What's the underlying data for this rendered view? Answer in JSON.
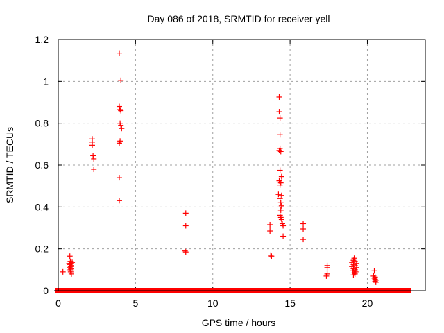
{
  "chart_data": {
    "type": "scatter",
    "title": "Day 086 of 2018, SRMTID for receiver yell",
    "xlabel": "GPS time / hours",
    "ylabel": "SRMTID / TECUs",
    "xlim": [
      0,
      23.75
    ],
    "ylim": [
      0,
      1.2
    ],
    "xticks": [
      0,
      5,
      10,
      15,
      20
    ],
    "xtick_labels": [
      "0",
      "5",
      "10",
      "15",
      "20"
    ],
    "yticks": [
      0,
      0.2,
      0.4,
      0.6,
      0.8,
      1.0,
      1.2
    ],
    "ytick_labels": [
      "0",
      "0.2",
      "0.4",
      "0.6",
      "0.8",
      "1",
      "1.2"
    ],
    "grid": true,
    "legend": "none",
    "marker": "plus",
    "marker_color": "#ff0000",
    "series": [
      {
        "name": "SRMTID",
        "points": [
          [
            0.3,
            0.09
          ],
          [
            0.75,
            0.165
          ],
          [
            0.78,
            0.14
          ],
          [
            0.8,
            0.13
          ],
          [
            0.72,
            0.125
          ],
          [
            0.85,
            0.12
          ],
          [
            0.8,
            0.115
          ],
          [
            0.75,
            0.11
          ],
          [
            0.82,
            0.105
          ],
          [
            0.78,
            0.1
          ],
          [
            0.8,
            0.09
          ],
          [
            0.85,
            0.08
          ],
          [
            0.9,
            0.135
          ],
          [
            0.7,
            0.13
          ],
          [
            2.2,
            0.725
          ],
          [
            2.2,
            0.71
          ],
          [
            2.2,
            0.695
          ],
          [
            2.25,
            0.645
          ],
          [
            2.3,
            0.63
          ],
          [
            2.3,
            0.58
          ],
          [
            3.95,
            1.135
          ],
          [
            4.05,
            1.005
          ],
          [
            3.95,
            0.88
          ],
          [
            4.0,
            0.865
          ],
          [
            4.05,
            0.86
          ],
          [
            4.0,
            0.8
          ],
          [
            4.05,
            0.79
          ],
          [
            4.1,
            0.775
          ],
          [
            4.0,
            0.715
          ],
          [
            3.95,
            0.705
          ],
          [
            3.95,
            0.54
          ],
          [
            3.95,
            0.43
          ],
          [
            8.25,
            0.37
          ],
          [
            8.25,
            0.31
          ],
          [
            8.2,
            0.19
          ],
          [
            8.25,
            0.185
          ],
          [
            13.7,
            0.315
          ],
          [
            13.7,
            0.285
          ],
          [
            13.75,
            0.17
          ],
          [
            13.8,
            0.165
          ],
          [
            14.3,
            0.925
          ],
          [
            14.3,
            0.855
          ],
          [
            14.35,
            0.825
          ],
          [
            14.35,
            0.745
          ],
          [
            14.35,
            0.68
          ],
          [
            14.3,
            0.67
          ],
          [
            14.4,
            0.665
          ],
          [
            14.35,
            0.575
          ],
          [
            14.45,
            0.545
          ],
          [
            14.3,
            0.525
          ],
          [
            14.4,
            0.515
          ],
          [
            14.35,
            0.505
          ],
          [
            14.25,
            0.46
          ],
          [
            14.45,
            0.455
          ],
          [
            14.35,
            0.44
          ],
          [
            14.4,
            0.42
          ],
          [
            14.45,
            0.405
          ],
          [
            14.4,
            0.385
          ],
          [
            14.35,
            0.36
          ],
          [
            14.4,
            0.35
          ],
          [
            14.45,
            0.34
          ],
          [
            14.5,
            0.32
          ],
          [
            14.55,
            0.31
          ],
          [
            14.55,
            0.26
          ],
          [
            15.85,
            0.32
          ],
          [
            15.85,
            0.295
          ],
          [
            15.85,
            0.245
          ],
          [
            17.4,
            0.12
          ],
          [
            17.4,
            0.11
          ],
          [
            17.4,
            0.08
          ],
          [
            17.35,
            0.07
          ],
          [
            19.15,
            0.155
          ],
          [
            19.1,
            0.145
          ],
          [
            19.2,
            0.14
          ],
          [
            19.0,
            0.135
          ],
          [
            19.3,
            0.13
          ],
          [
            19.1,
            0.125
          ],
          [
            19.2,
            0.12
          ],
          [
            19.0,
            0.115
          ],
          [
            19.3,
            0.11
          ],
          [
            19.1,
            0.105
          ],
          [
            19.2,
            0.1
          ],
          [
            19.05,
            0.095
          ],
          [
            19.25,
            0.09
          ],
          [
            19.15,
            0.085
          ],
          [
            19.2,
            0.08
          ],
          [
            19.1,
            0.075
          ],
          [
            20.45,
            0.095
          ],
          [
            20.4,
            0.07
          ],
          [
            20.5,
            0.065
          ],
          [
            20.45,
            0.06
          ],
          [
            20.5,
            0.055
          ],
          [
            20.55,
            0.05
          ],
          [
            20.5,
            0.045
          ],
          [
            20.55,
            0.04
          ]
        ],
        "zero_coverage_hours": [
          [
            0.0,
            0.75
          ],
          [
            0.85,
            2.4
          ],
          [
            2.6,
            3.3
          ],
          [
            3.4,
            4.0
          ],
          [
            4.1,
            4.6
          ],
          [
            4.65,
            4.85
          ],
          [
            4.9,
            5.05
          ],
          [
            5.15,
            7.1
          ],
          [
            7.2,
            7.85
          ],
          [
            7.9,
            8.05
          ],
          [
            8.1,
            8.85
          ],
          [
            8.95,
            10.5
          ],
          [
            10.55,
            11.0
          ],
          [
            11.1,
            11.3
          ],
          [
            11.55,
            12.7
          ],
          [
            12.8,
            13.05
          ],
          [
            13.1,
            13.6
          ],
          [
            13.65,
            14.3
          ],
          [
            14.35,
            14.55
          ],
          [
            14.6,
            14.75
          ],
          [
            14.8,
            15.35
          ],
          [
            15.5,
            16.15
          ],
          [
            16.2,
            16.45
          ],
          [
            16.5,
            16.75
          ],
          [
            16.85,
            17.2
          ],
          [
            17.3,
            17.55
          ],
          [
            17.65,
            18.0
          ],
          [
            18.1,
            18.4
          ],
          [
            18.5,
            18.95
          ],
          [
            19.05,
            19.2
          ],
          [
            19.4,
            19.9
          ],
          [
            20.1,
            21.2
          ],
          [
            21.25,
            22.1
          ],
          [
            22.15,
            22.65
          ]
        ]
      }
    ]
  }
}
